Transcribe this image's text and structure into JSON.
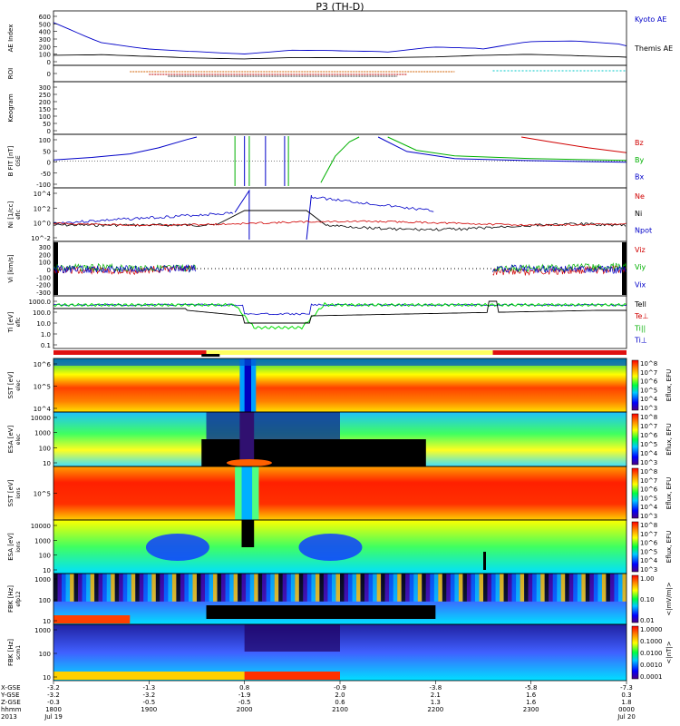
{
  "title": "P3 (TH-D)",
  "panels": {
    "ae": {
      "ylabel": "AE Index",
      "ticks": [
        "600",
        "500",
        "400",
        "300",
        "200",
        "100",
        "0"
      ],
      "legend": [
        {
          "label": "Kyoto AE",
          "color": "#0000c8"
        },
        {
          "label": "Themis AE",
          "color": "#000000"
        }
      ]
    },
    "roi": {
      "ylabel": "ROI",
      "ticks": [
        "0"
      ]
    },
    "keogram": {
      "ylabel": "Keogram",
      "ticks": [
        "300",
        "250",
        "200",
        "150",
        "100",
        "50",
        "0"
      ]
    },
    "bfit": {
      "ylabel": "B FIT [nT]",
      "sublabel": "GSE",
      "ticks": [
        "100",
        "50",
        "0",
        "-50",
        "-100"
      ],
      "legend": [
        {
          "label": "Bz",
          "color": "#d00000"
        },
        {
          "label": "By",
          "color": "#00b000"
        },
        {
          "label": "Bx",
          "color": "#0000c8"
        }
      ]
    },
    "density": {
      "ylabel": "Ni [1/cc]",
      "sublabel": "eflc",
      "ticks": [
        "10^4",
        "10^2",
        "10^0",
        "10^-2"
      ],
      "legend": [
        {
          "label": "Ne",
          "color": "#d00000"
        },
        {
          "label": "Ni",
          "color": "#000000"
        },
        {
          "label": "Npot",
          "color": "#0000c8"
        }
      ]
    },
    "velocity": {
      "ylabel": "Vi [km/s]",
      "ticks": [
        "300",
        "200",
        "100",
        "0",
        "-100",
        "-200",
        "-300"
      ],
      "legend": [
        {
          "label": "Viz",
          "color": "#d00000"
        },
        {
          "label": "Viy",
          "color": "#00b000"
        },
        {
          "label": "Vix",
          "color": "#0000c8"
        }
      ]
    },
    "temp": {
      "ylabel": "Ti [eV]",
      "sublabel": "eflc",
      "ticks": [
        "1000.0",
        "100.0",
        "10.0",
        "1.0",
        "0.1"
      ],
      "legend": [
        {
          "label": "Tell",
          "color": "#000000"
        },
        {
          "label": "Te⊥",
          "color": "#d00000"
        },
        {
          "label": "Ti||",
          "color": "#00b000"
        },
        {
          "label": "Ti⊥",
          "color": "#0000c8"
        }
      ]
    },
    "sst_e": {
      "ylabel": "SST [eV]",
      "sublabel": "elec",
      "ticks": [
        "10^6",
        "10^5",
        "10^4"
      ]
    },
    "esa_e": {
      "ylabel": "ESA [eV]",
      "sublabel": "elec",
      "ticks": [
        "10000",
        "1000",
        "100",
        "10"
      ]
    },
    "sst_i": {
      "ylabel": "SST [eV]",
      "sublabel": "ions",
      "ticks": [
        "10^5"
      ]
    },
    "esa_i": {
      "ylabel": "ESA [eV]",
      "sublabel": "ions",
      "ticks": [
        "10000",
        "1000",
        "100",
        "10"
      ]
    },
    "fbk_e": {
      "ylabel": "FBK [Hz]",
      "sublabel": "efp12",
      "ticks": [
        "1000",
        "100",
        "10"
      ]
    },
    "fbk_b": {
      "ylabel": "FBK [Hz]",
      "sublabel": "scm1",
      "ticks": [
        "1000",
        "100",
        "10"
      ]
    }
  },
  "colorbars": {
    "spec_top": {
      "label": "Eflux, EFU",
      "ticks": [
        "10^8",
        "10^7",
        "10^6",
        "10^5",
        "10^4",
        "10^3"
      ]
    },
    "spec2": {
      "label": "Eflux, EFU",
      "ticks": [
        "10^8",
        "10^7",
        "10^6",
        "10^5",
        "10^4",
        "10^3"
      ]
    },
    "spec3": {
      "label": "Eflux, EFU",
      "ticks": [
        "10^8",
        "10^7",
        "10^6",
        "10^5",
        "10^4",
        "10^3"
      ]
    },
    "spec4": {
      "label": "Eflux, EFU",
      "ticks": [
        "10^8",
        "10^7",
        "10^6",
        "10^5",
        "10^4",
        "10^3"
      ]
    },
    "fbk_e": {
      "label": "<|mV/m|>",
      "ticks": [
        "1.00",
        "0.10",
        "0.01"
      ]
    },
    "fbk_b": {
      "label": "<|nT|>",
      "ticks": [
        "1.0000",
        "0.1000",
        "0.0100",
        "0.0010",
        "0.0001"
      ]
    }
  },
  "xaxis": {
    "row_labels": [
      "X-GSE",
      "Y-GSE",
      "Z-GSE",
      "hhmm",
      "2013"
    ],
    "ticks": [
      {
        "vals": [
          "-3.2",
          "-3.2",
          "-0.3",
          "1800",
          "Jul 19"
        ]
      },
      {
        "vals": [
          "-1.3",
          "-3.2",
          "-0.5",
          "1900",
          ""
        ]
      },
      {
        "vals": [
          "0.8",
          "-1.9",
          "-0.5",
          "2000",
          ""
        ]
      },
      {
        "vals": [
          "-0.9",
          "2.0",
          "0.6",
          "2100",
          ""
        ]
      },
      {
        "vals": [
          "-3.8",
          "2.1",
          "1.3",
          "2200",
          ""
        ]
      },
      {
        "vals": [
          "-5.8",
          "1.6",
          "1.6",
          "2300",
          ""
        ]
      },
      {
        "vals": [
          "-7.3",
          "0.3",
          "1.8",
          "0000",
          "Jul 20"
        ]
      }
    ]
  },
  "chart_data": [
    {
      "type": "line",
      "title": "P3 (TH-D)",
      "ylabel": "AE Index",
      "ylim": [
        0,
        650
      ],
      "x": [
        "18:00",
        "18:30",
        "19:00",
        "19:30",
        "20:00",
        "20:30",
        "21:00",
        "21:30",
        "22:00",
        "22:30",
        "23:00",
        "23:30",
        "00:00"
      ],
      "series": [
        {
          "name": "Kyoto AE",
          "values": [
            520,
            260,
            180,
            150,
            120,
            170,
            160,
            140,
            200,
            170,
            260,
            260,
            210
          ]
        },
        {
          "name": "Themis AE",
          "values": [
            80,
            90,
            70,
            50,
            40,
            60,
            60,
            60,
            70,
            90,
            100,
            80,
            60
          ]
        }
      ]
    },
    {
      "type": "line",
      "ylabel": "B FIT [nT]",
      "ylim": [
        -100,
        100
      ],
      "x": [
        "18:00",
        "18:30",
        "19:00",
        "19:30",
        "20:00",
        "20:30",
        "21:00",
        "21:30",
        "22:00",
        "22:30",
        "23:00",
        "23:30",
        "00:00"
      ],
      "series": [
        {
          "name": "Bx",
          "values": [
            10,
            25,
            55,
            100,
            null,
            null,
            null,
            60,
            30,
            15,
            10,
            5,
            2
          ]
        },
        {
          "name": "By",
          "values": [
            null,
            null,
            null,
            null,
            null,
            null,
            -80,
            60,
            35,
            20,
            12,
            8,
            5
          ]
        },
        {
          "name": "Bz",
          "values": [
            null,
            null,
            null,
            null,
            null,
            null,
            null,
            null,
            null,
            100,
            80,
            55,
            35
          ]
        }
      ]
    },
    {
      "type": "line",
      "ylabel": "Vi [km/s]",
      "ylim": [
        -300,
        300
      ],
      "x": [
        "18:00",
        "18:30",
        "19:00",
        "19:30",
        "20:00",
        "22:30",
        "23:00",
        "23:30",
        "00:00"
      ],
      "series": [
        {
          "name": "Viz",
          "values": [
            -20,
            -30,
            -10,
            -15,
            null,
            -40,
            -30,
            -20,
            -10
          ]
        },
        {
          "name": "Viy",
          "values": [
            15,
            10,
            5,
            10,
            null,
            5,
            10,
            15,
            20
          ]
        },
        {
          "name": "Vix",
          "values": [
            -10,
            -5,
            0,
            -5,
            null,
            0,
            -5,
            -10,
            -15
          ]
        }
      ]
    }
  ]
}
